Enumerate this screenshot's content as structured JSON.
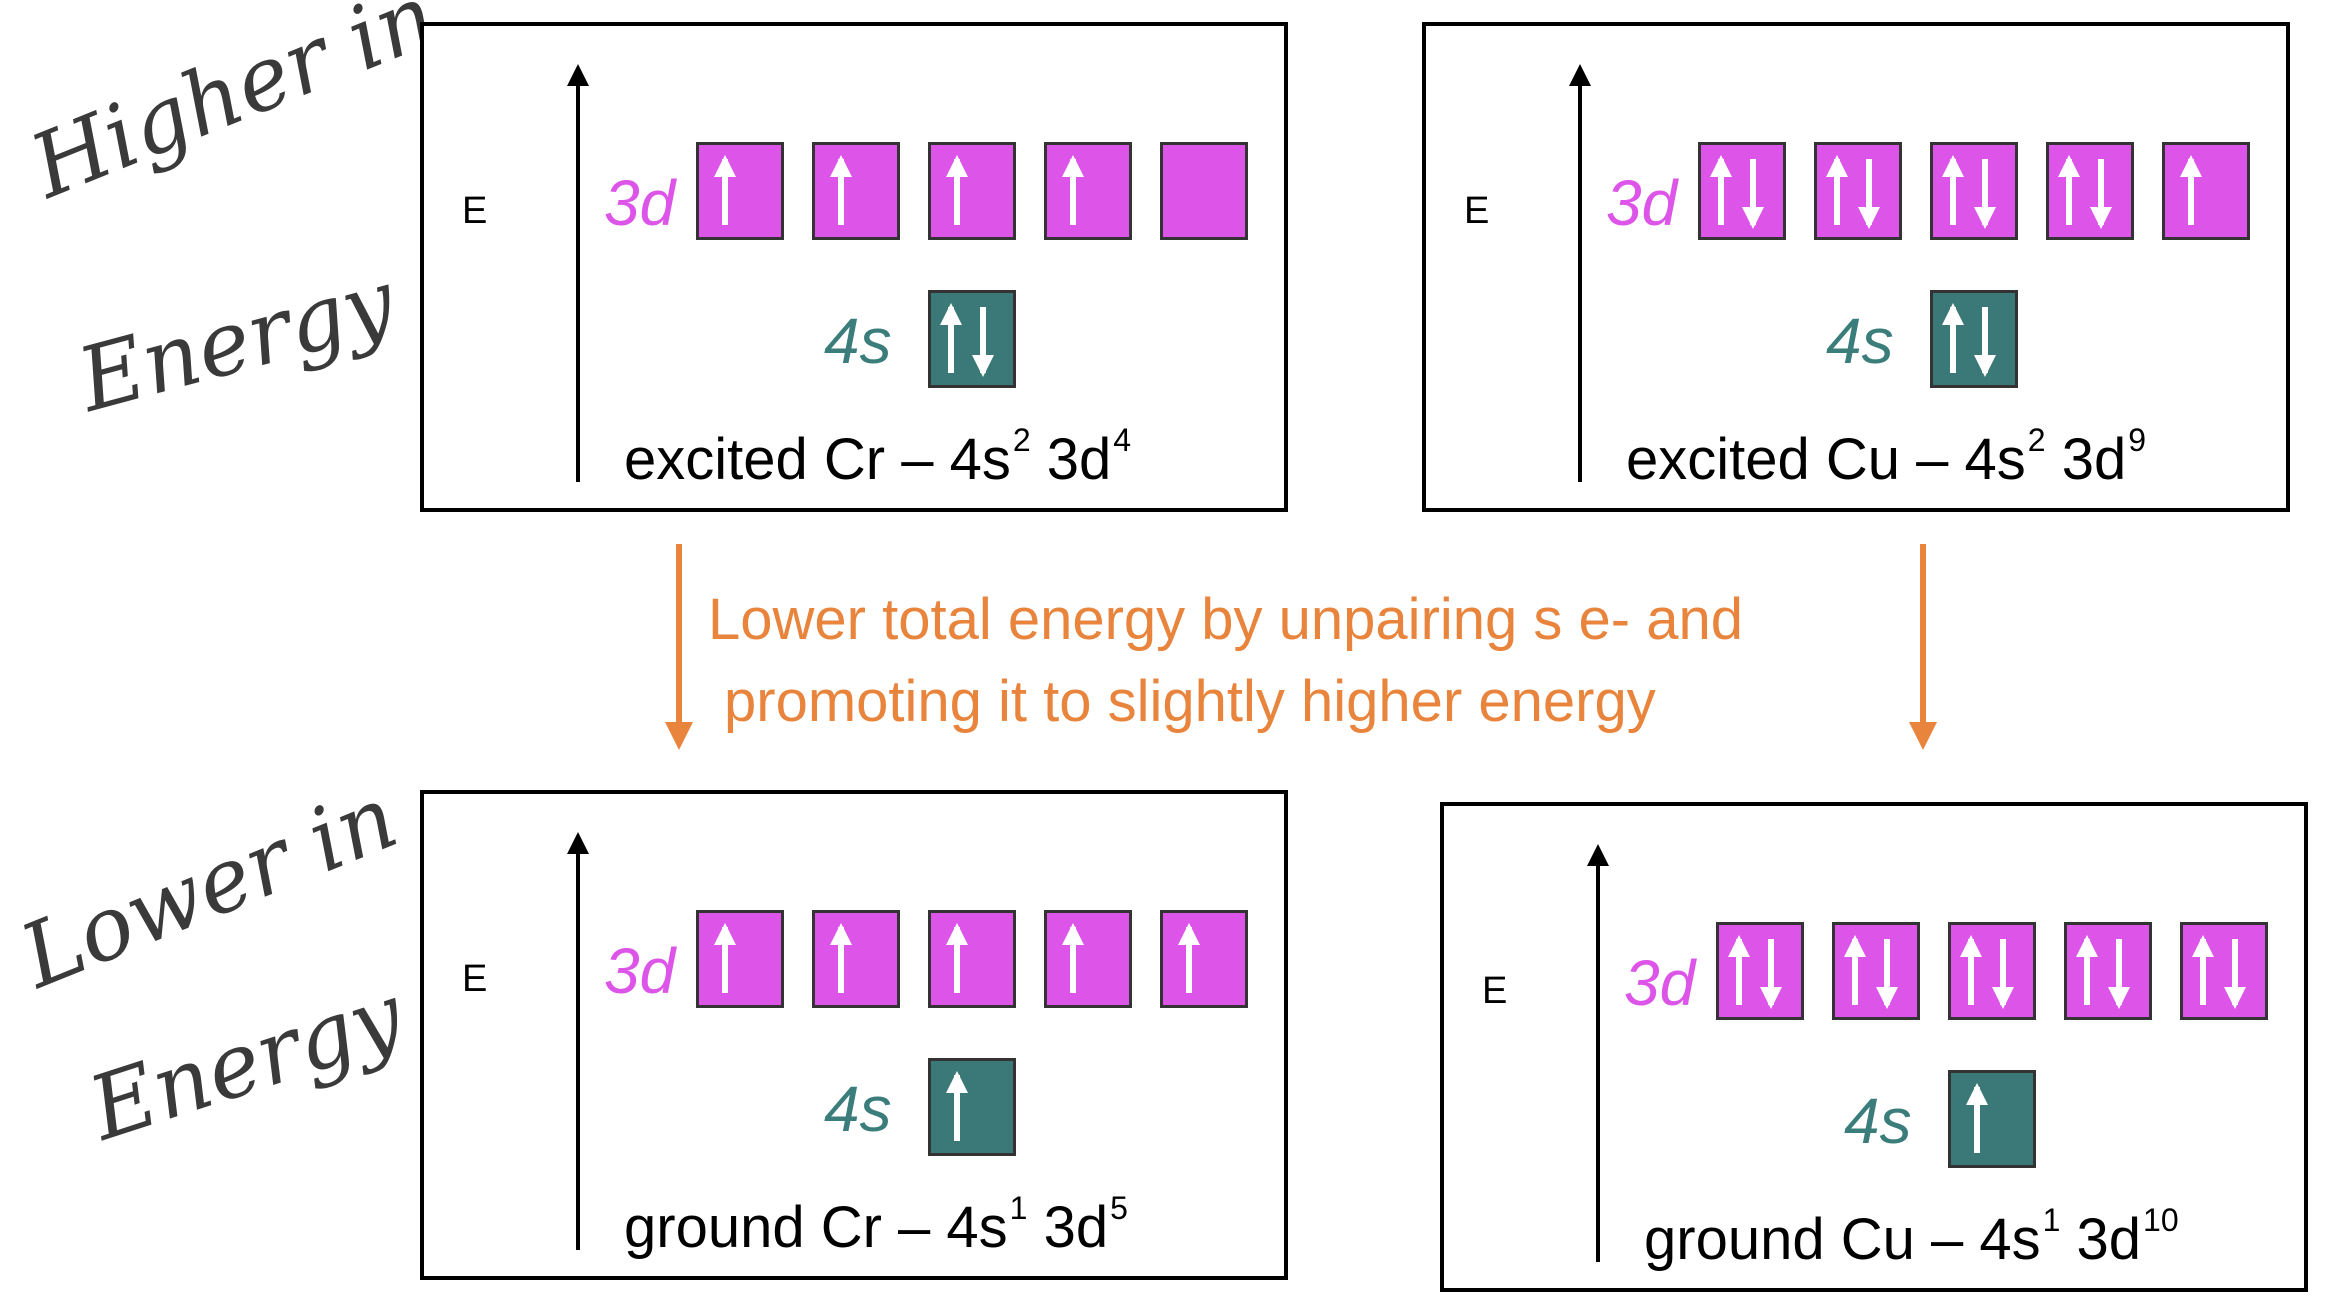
{
  "side_labels": {
    "higher": [
      "Higher in",
      "Energy"
    ],
    "lower": [
      "Lower in",
      "Energy"
    ]
  },
  "transition_text": [
    "Lower total energy by unpairing s e- and",
    "promoting it to slightly higher energy"
  ],
  "colors": {
    "orbital_3d": "#dd55e8",
    "orbital_4s": "#3a7977",
    "note": "#e8843c"
  },
  "panels": [
    {
      "axis_label": "E",
      "sub_3d": "3d",
      "sub_4s": "4s",
      "config_name": "excited Cr – 4s",
      "config_s_exp": "2",
      "config_mid": " 3d",
      "config_d_exp": "4",
      "d_orbitals": [
        "up",
        "up",
        "up",
        "up",
        "empty"
      ],
      "s_orbital": "updown"
    },
    {
      "axis_label": "E",
      "sub_3d": "3d",
      "sub_4s": "4s",
      "config_name": "excited Cu – 4s",
      "config_s_exp": "2",
      "config_mid": " 3d",
      "config_d_exp": "9",
      "d_orbitals": [
        "updown",
        "updown",
        "updown",
        "updown",
        "up"
      ],
      "s_orbital": "updown"
    },
    {
      "axis_label": "E",
      "sub_3d": "3d",
      "sub_4s": "4s",
      "config_name": "ground Cr – 4s",
      "config_s_exp": "1",
      "config_mid": " 3d",
      "config_d_exp": "5",
      "d_orbitals": [
        "up",
        "up",
        "up",
        "up",
        "up"
      ],
      "s_orbital": "up"
    },
    {
      "axis_label": "E",
      "sub_3d": "3d",
      "sub_4s": "4s",
      "config_name": "ground Cu – 4s",
      "config_s_exp": "1",
      "config_mid": " 3d",
      "config_d_exp": "10",
      "d_orbitals": [
        "updown",
        "updown",
        "updown",
        "updown",
        "updown"
      ],
      "s_orbital": "up"
    }
  ]
}
